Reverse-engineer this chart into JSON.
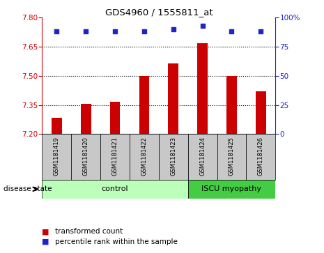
{
  "title": "GDS4960 / 1555811_at",
  "samples": [
    "GSM1181419",
    "GSM1181420",
    "GSM1181421",
    "GSM1181422",
    "GSM1181423",
    "GSM1181424",
    "GSM1181425",
    "GSM1181426"
  ],
  "bar_values": [
    7.285,
    7.355,
    7.365,
    7.5,
    7.565,
    7.67,
    7.5,
    7.42
  ],
  "percentile_values": [
    88,
    88,
    88,
    88,
    90,
    93,
    88,
    88
  ],
  "ymin": 7.2,
  "ymax": 7.8,
  "yticks": [
    7.2,
    7.35,
    7.5,
    7.65,
    7.8
  ],
  "right_yticks": [
    0,
    25,
    50,
    75,
    100
  ],
  "bar_color": "#cc0000",
  "percentile_color": "#2222cc",
  "bg_color": "#c8c8c8",
  "control_color": "#bbffbb",
  "iscu_color": "#44cc44",
  "n_control": 5,
  "n_iscu": 3,
  "left_label_color": "#cc0000",
  "right_label_color": "#2222cc",
  "legend_items": [
    "transformed count",
    "percentile rank within the sample"
  ],
  "disease_state_label": "disease state"
}
